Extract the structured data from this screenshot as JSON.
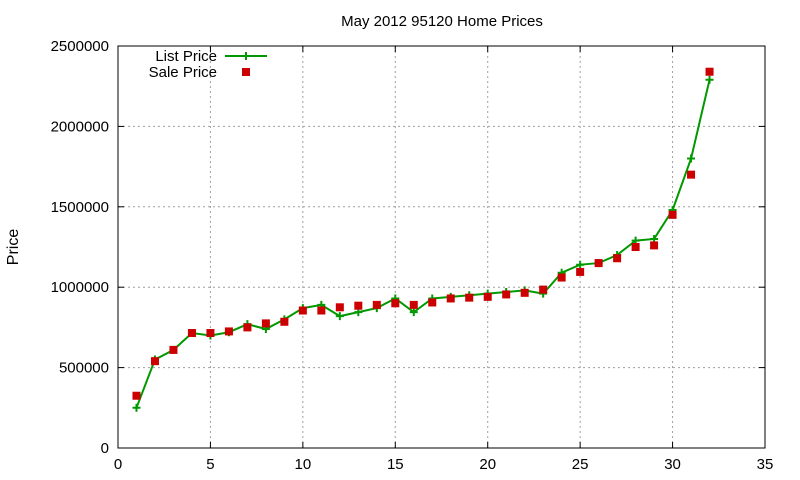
{
  "chart_data": {
    "type": "line",
    "title": "May 2012 95120 Home Prices",
    "xlabel": "",
    "ylabel": "Price",
    "xlim": [
      0,
      35
    ],
    "ylim": [
      0,
      2500000
    ],
    "xticks": [
      0,
      5,
      10,
      15,
      20,
      25,
      30,
      35
    ],
    "yticks": [
      0,
      500000,
      1000000,
      1500000,
      2000000,
      2500000
    ],
    "grid": true,
    "legend_position": "top-left",
    "series": [
      {
        "name": "List Price",
        "style": "line+cross",
        "color": "#009900",
        "x": [
          1,
          2,
          3,
          4,
          5,
          6,
          7,
          8,
          9,
          10,
          11,
          12,
          13,
          14,
          15,
          16,
          17,
          18,
          19,
          20,
          21,
          22,
          23,
          24,
          25,
          26,
          27,
          28,
          29,
          30,
          31,
          32
        ],
        "values": [
          250000,
          550000,
          610000,
          715000,
          700000,
          720000,
          770000,
          740000,
          800000,
          870000,
          890000,
          820000,
          845000,
          870000,
          930000,
          845000,
          930000,
          940000,
          950000,
          960000,
          970000,
          980000,
          960000,
          1090000,
          1140000,
          1150000,
          1200000,
          1290000,
          1300000,
          1480000,
          1800000,
          2290000
        ]
      },
      {
        "name": "Sale Price",
        "style": "square",
        "color": "#cc0000",
        "x": [
          1,
          2,
          3,
          4,
          5,
          6,
          7,
          8,
          9,
          10,
          11,
          12,
          13,
          14,
          15,
          16,
          17,
          18,
          19,
          20,
          21,
          22,
          23,
          24,
          25,
          26,
          27,
          28,
          29,
          30,
          31,
          32
        ],
        "values": [
          325000,
          540000,
          610000,
          715000,
          715000,
          725000,
          750000,
          775000,
          785000,
          855000,
          855000,
          875000,
          885000,
          890000,
          900000,
          890000,
          905000,
          930000,
          935000,
          940000,
          955000,
          965000,
          985000,
          1060000,
          1095000,
          1150000,
          1180000,
          1250000,
          1260000,
          1450000,
          1700000,
          2340000
        ]
      }
    ]
  }
}
